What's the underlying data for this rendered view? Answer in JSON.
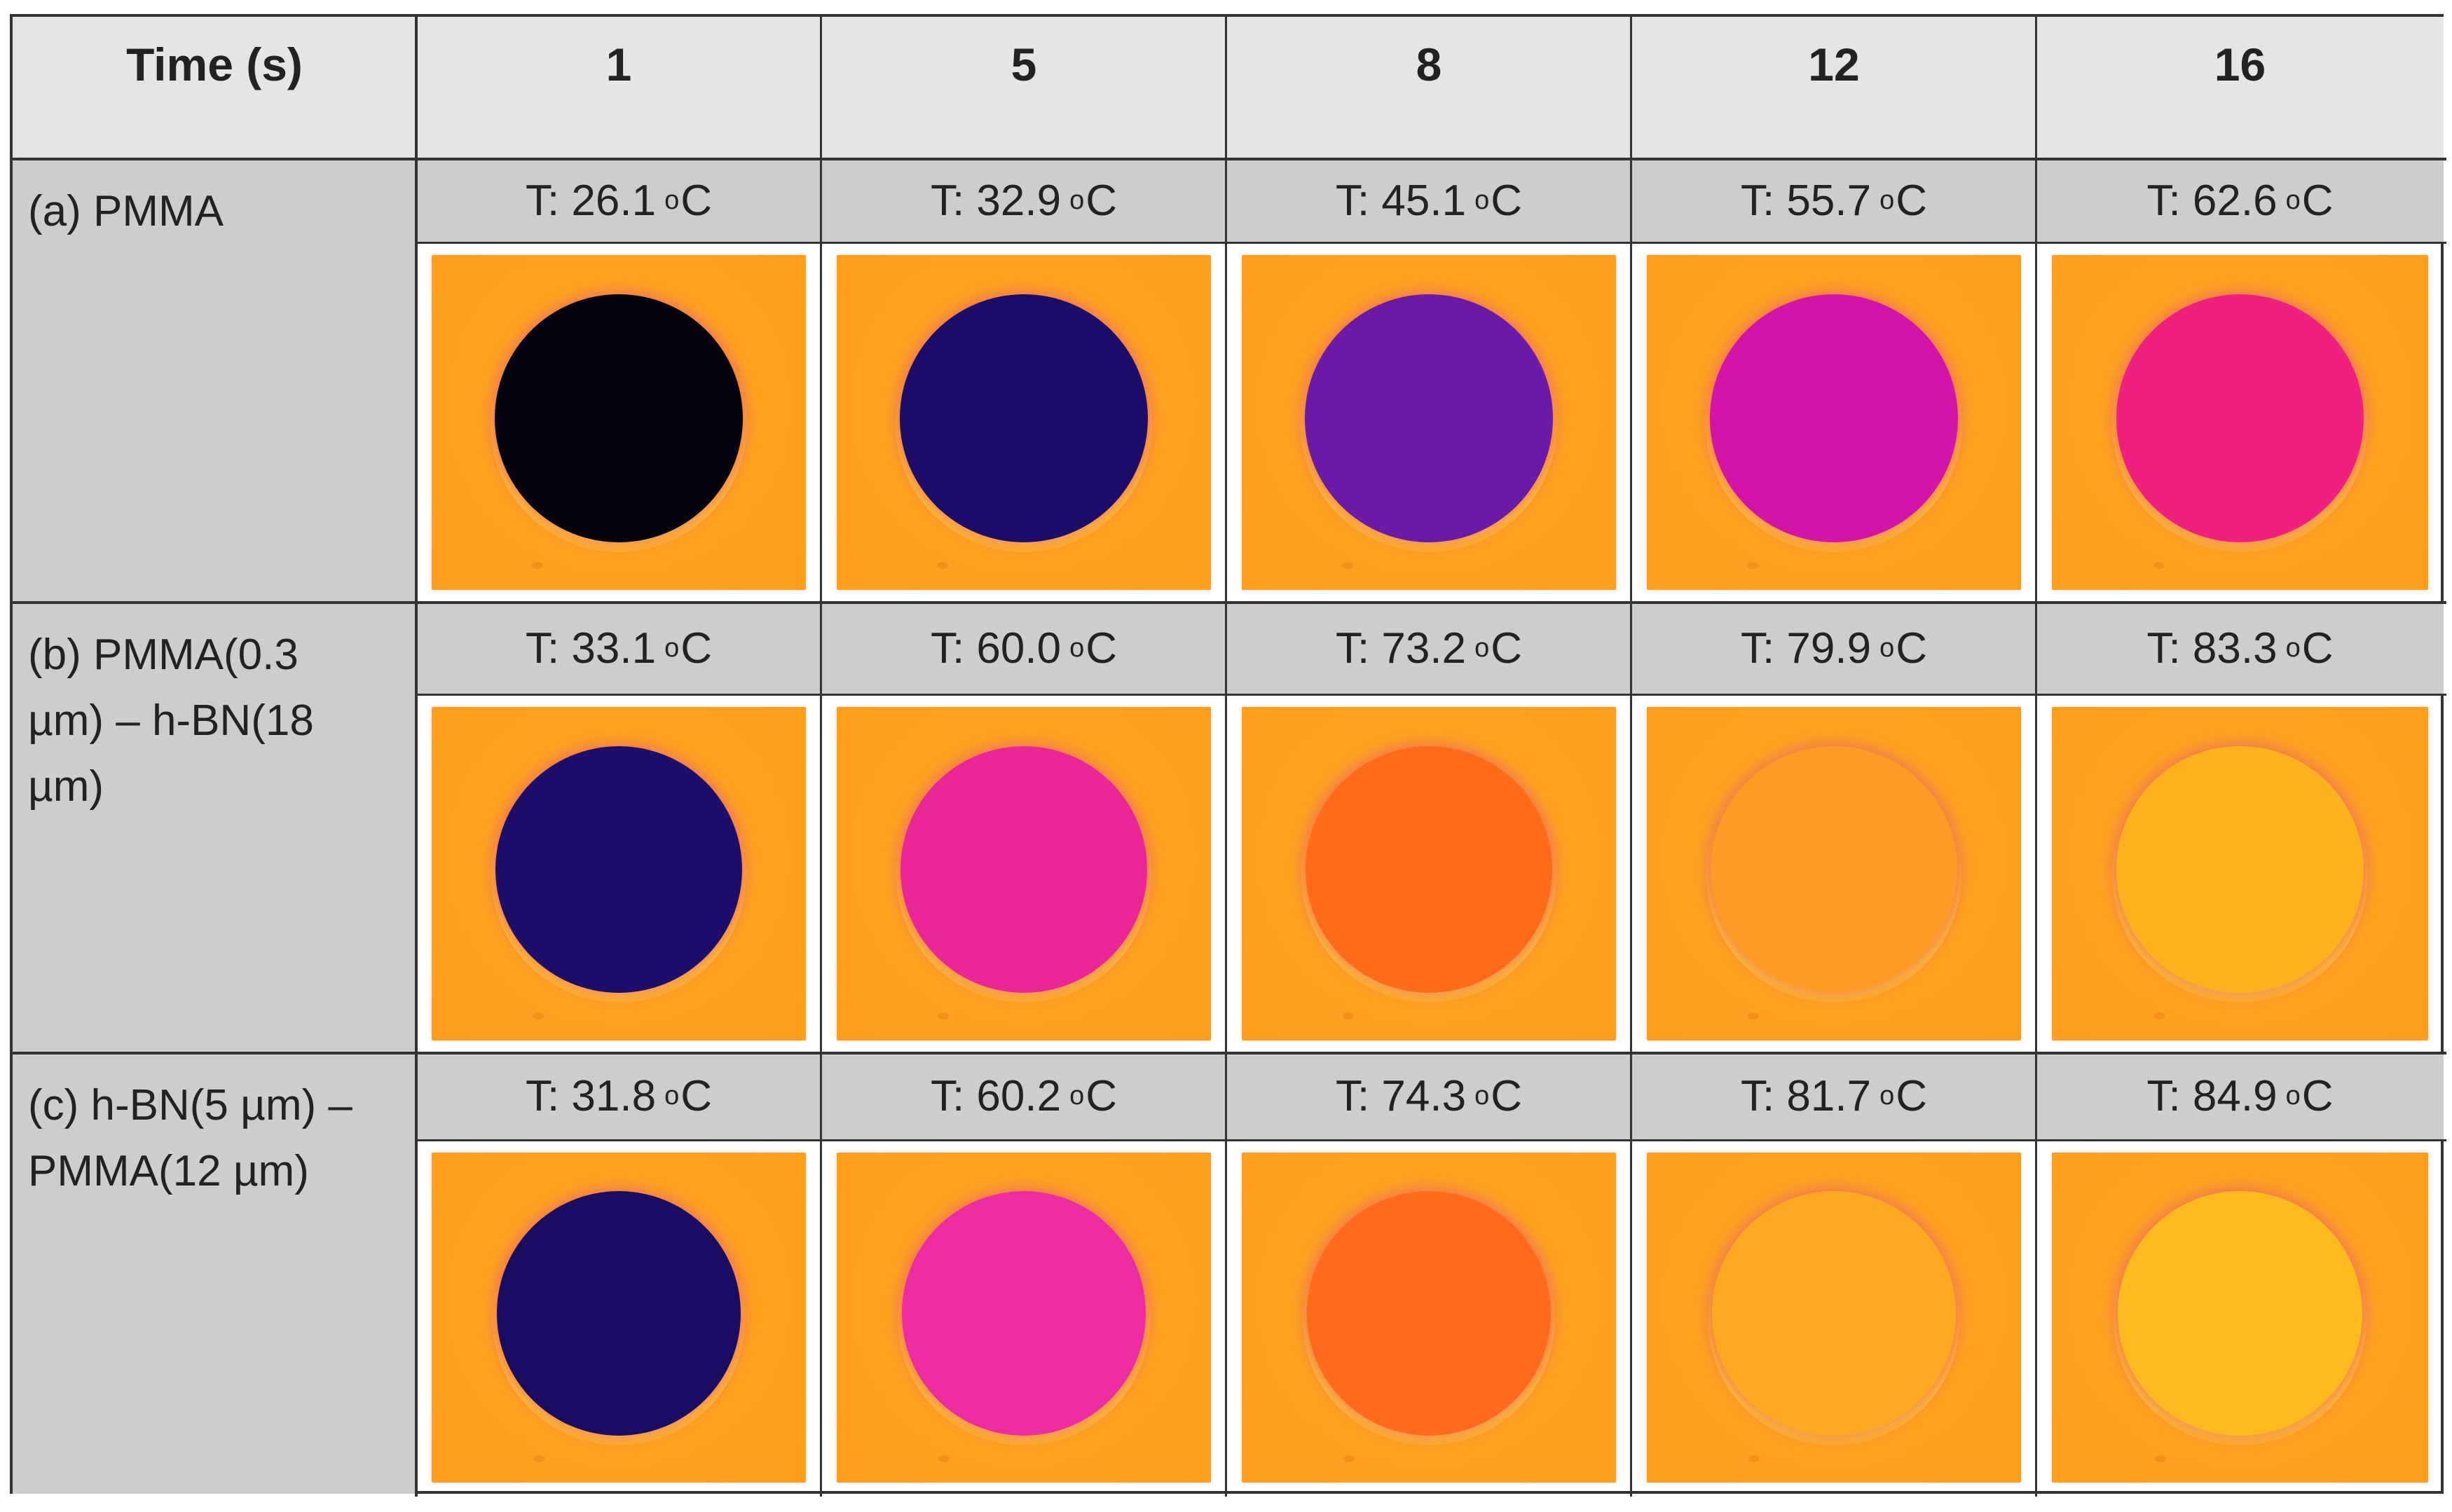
{
  "table": {
    "header": {
      "time_label": "Time (s)",
      "times": [
        "1",
        "5",
        "8",
        "12",
        "16"
      ]
    },
    "rows": [
      {
        "label": "(a) PMMA",
        "temps": [
          {
            "value": "T: 26.1",
            "unit_o": "o",
            "unit_c": "C"
          },
          {
            "value": "T: 32.9",
            "unit_o": "o",
            "unit_c": "C"
          },
          {
            "value": "T: 45.1",
            "unit_o": "o",
            "unit_c": "C"
          },
          {
            "value": "T: 55.7",
            "unit_o": "o",
            "unit_c": "C"
          },
          {
            "value": "T: 62.6",
            "unit_o": "o",
            "unit_c": "C"
          }
        ],
        "disc_colors": [
          "#050310",
          "#1c0d6b",
          "#6a1aa6",
          "#d414a8",
          "#f0207f"
        ]
      },
      {
        "label": "(b) PMMA(0.3\nµm) – h-BN(18\nµm)",
        "temps": [
          {
            "value": "T: 33.1",
            "unit_o": "o",
            "unit_c": "C"
          },
          {
            "value": "T: 60.0",
            "unit_o": "o",
            "unit_c": "C"
          },
          {
            "value": "T: 73.2",
            "unit_o": "o",
            "unit_c": "C"
          },
          {
            "value": "T: 79.9",
            "unit_o": "o",
            "unit_c": "C"
          },
          {
            "value": "T: 83.3",
            "unit_o": "o",
            "unit_c": "C"
          }
        ],
        "disc_colors": [
          "#1e0e6c",
          "#ea2696",
          "#ff6b18",
          "#ff9a26",
          "#ffb21e"
        ]
      },
      {
        "label": "(c) h-BN(5 µm) –\nPMMA(12 µm)",
        "temps": [
          {
            "value": "T: 31.8",
            "unit_o": "o",
            "unit_c": "C"
          },
          {
            "value": "T: 60.2",
            "unit_o": "o",
            "unit_c": "C"
          },
          {
            "value": "T: 74.3",
            "unit_o": "o",
            "unit_c": "C"
          },
          {
            "value": "T: 81.7",
            "unit_o": "o",
            "unit_c": "C"
          },
          {
            "value": "T: 84.9",
            "unit_o": "o",
            "unit_c": "C"
          }
        ],
        "disc_colors": [
          "#1a0c62",
          "#ec2ca0",
          "#ff6a1c",
          "#ffa822",
          "#ffba1e"
        ]
      }
    ],
    "colors": {
      "background_orange": "#ffa11e",
      "border": "#333333",
      "header_bg": "#e5e5e5",
      "label_bg": "#cdcdcd"
    }
  }
}
